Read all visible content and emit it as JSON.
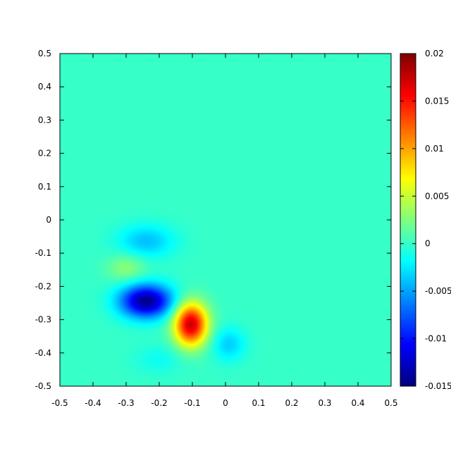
{
  "chart_data": {
    "type": "heatmap",
    "title": "",
    "xlabel": "",
    "ylabel": "",
    "xlim": [
      -0.5,
      0.5
    ],
    "ylim": [
      -0.5,
      0.5
    ],
    "x_ticks": [
      "-0.5",
      "-0.4",
      "-0.3",
      "-0.2",
      "-0.1",
      "0",
      "0.1",
      "0.2",
      "0.3",
      "0.4",
      "0.5"
    ],
    "y_ticks": [
      "-0.5",
      "-0.4",
      "-0.3",
      "-0.2",
      "-0.1",
      "0",
      "0.1",
      "0.2",
      "0.3",
      "0.4",
      "0.5"
    ],
    "colorbar": {
      "range": [
        -0.015,
        0.02
      ],
      "ticks": [
        "-0.015",
        "-0.01",
        "-0.005",
        "0",
        "0.005",
        "0.01",
        "0.015",
        "0.02"
      ],
      "colormap": "jet"
    },
    "background_value": 0,
    "features": [
      {
        "x": -0.24,
        "y": -0.245,
        "value": -0.0145,
        "sx": 0.055,
        "sy": 0.035
      },
      {
        "x": -0.105,
        "y": -0.315,
        "value": 0.0175,
        "sx": 0.035,
        "sy": 0.045
      },
      {
        "x": -0.24,
        "y": -0.065,
        "value": -0.004,
        "sx": 0.06,
        "sy": 0.035
      },
      {
        "x": -0.3,
        "y": -0.145,
        "value": 0.003,
        "sx": 0.04,
        "sy": 0.03
      },
      {
        "x": 0.01,
        "y": -0.375,
        "value": -0.0035,
        "sx": 0.035,
        "sy": 0.035
      },
      {
        "x": -0.2,
        "y": -0.42,
        "value": -0.0015,
        "sx": 0.05,
        "sy": 0.03
      }
    ]
  }
}
